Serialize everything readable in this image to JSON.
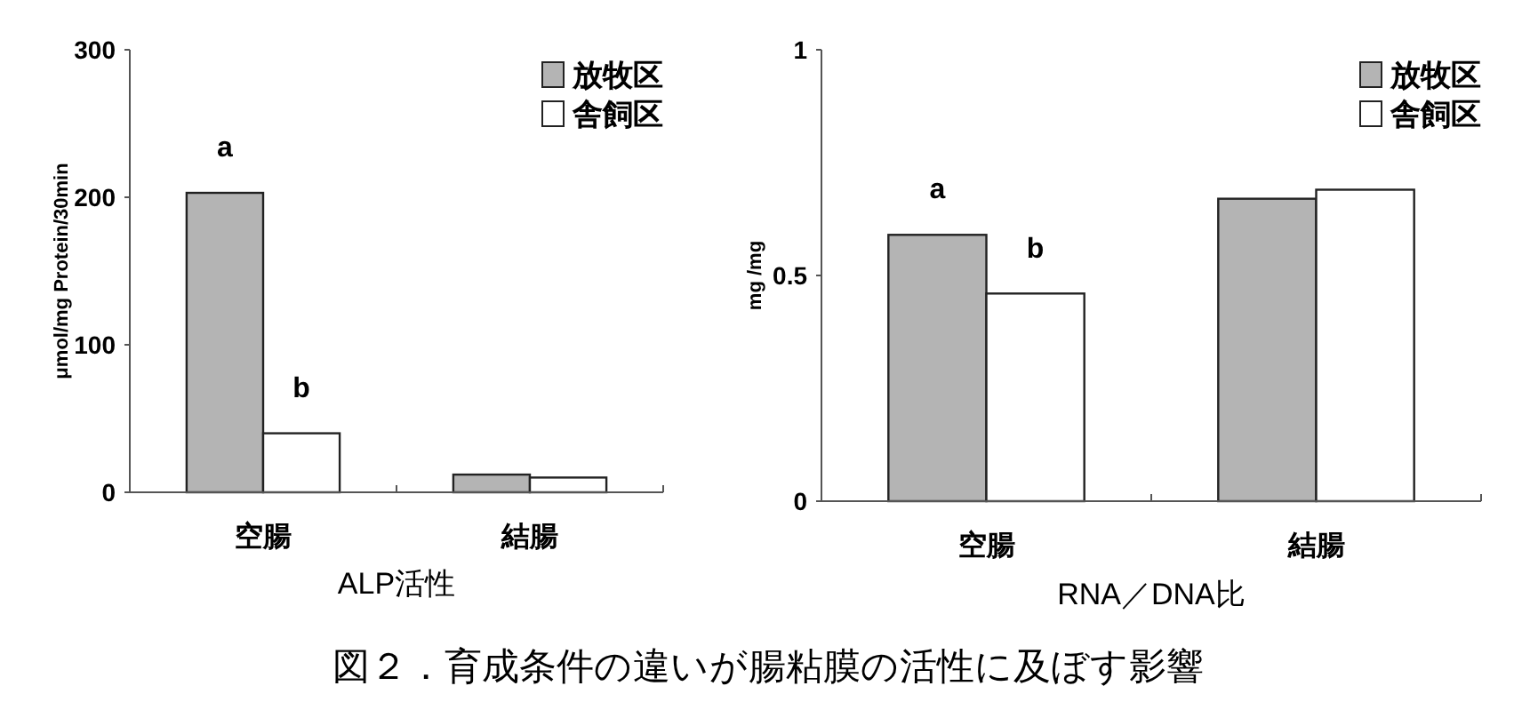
{
  "chart_data": [
    {
      "type": "bar",
      "categories": [
        "空腸",
        "結腸"
      ],
      "xlabel": "ALP活性",
      "ylabel": "μmol/mg Protein/30min",
      "ylim": [
        0,
        300
      ],
      "yticks": [
        0,
        100,
        200,
        300
      ],
      "legend": "top right",
      "series": [
        {
          "name": "放牧区",
          "color": "#b4b4b4",
          "values": [
            203,
            12
          ]
        },
        {
          "name": "舎飼区",
          "color": "#ffffff",
          "values": [
            40,
            10
          ]
        }
      ],
      "annotations": [
        {
          "text": "a",
          "x": "空腸",
          "y": 203
        },
        {
          "text": "b",
          "x": "空腸",
          "y": 40
        },
        "図２．育成条件の違いが腸粘膜の活性に及ぼす影響"
      ]
    },
    {
      "type": "bar",
      "categories": [
        "空腸",
        "結腸"
      ],
      "xlabel": "RNA／DNA比",
      "ylabel": "mg /mg",
      "ylim": [
        0,
        1
      ],
      "yticks": [
        0,
        0.5,
        1
      ],
      "legend": "top right",
      "series": [
        {
          "name": "放牧区",
          "color": "#b4b4b4",
          "values": [
            0.59,
            0.67
          ]
        },
        {
          "name": "舎飼区",
          "color": "#ffffff",
          "values": [
            0.46,
            0.69
          ]
        }
      ],
      "annotations": [
        {
          "text": "a",
          "x": "空腸",
          "y": 0.59
        },
        {
          "text": "b",
          "x": "空腸",
          "y": 0.46
        }
      ]
    }
  ]
}
